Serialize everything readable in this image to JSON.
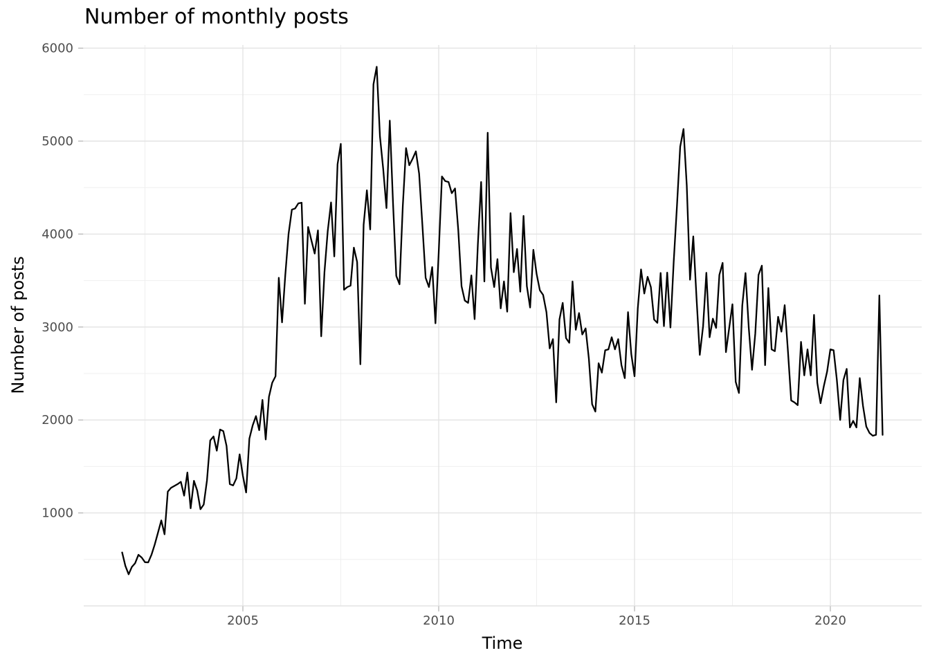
{
  "chart_data": {
    "type": "line",
    "title": "Number of monthly posts",
    "xlabel": "Time",
    "ylabel": "Number of posts",
    "x_start": "2001-12",
    "x_end": "2021-05",
    "x_frequency": "monthly",
    "n_points": 234,
    "values": [
      575,
      430,
      340,
      420,
      460,
      550,
      520,
      470,
      468,
      550,
      660,
      790,
      920,
      770,
      1230,
      1270,
      1290,
      1310,
      1335,
      1186,
      1435,
      1050,
      1345,
      1240,
      1040,
      1090,
      1350,
      1780,
      1823,
      1670,
      1897,
      1880,
      1720,
      1310,
      1296,
      1371,
      1630,
      1400,
      1220,
      1800,
      1940,
      2042,
      1890,
      2216,
      1790,
      2250,
      2400,
      2470,
      3530,
      3050,
      3560,
      4000,
      4263,
      4275,
      4330,
      4337,
      3250,
      4077,
      3930,
      3790,
      4040,
      2900,
      3590,
      4030,
      4340,
      3760,
      4750,
      4970,
      3400,
      3430,
      3445,
      3854,
      3700,
      2600,
      4100,
      4470,
      4050,
      5610,
      5800,
      5050,
      4700,
      4280,
      5220,
      4330,
      3550,
      3460,
      4300,
      4925,
      4740,
      4810,
      4890,
      4650,
      4100,
      3530,
      3430,
      3645,
      3040,
      3800,
      4620,
      4570,
      4560,
      4440,
      4490,
      4040,
      3440,
      3285,
      3260,
      3556,
      3085,
      3890,
      4560,
      3490,
      5090,
      3640,
      3430,
      3730,
      3200,
      3490,
      3165,
      4225,
      3590,
      3840,
      3380,
      4195,
      3440,
      3210,
      3830,
      3570,
      3395,
      3345,
      3160,
      2770,
      2870,
      2190,
      3080,
      3260,
      2880,
      2830,
      3490,
      2970,
      3150,
      2920,
      2985,
      2660,
      2170,
      2090,
      2610,
      2510,
      2750,
      2760,
      2890,
      2760,
      2870,
      2590,
      2450,
      3160,
      2710,
      2470,
      3200,
      3620,
      3360,
      3540,
      3430,
      3080,
      3045,
      3582,
      3010,
      3585,
      2995,
      3700,
      4300,
      4940,
      5130,
      4520,
      3510,
      3975,
      3310,
      2700,
      3010,
      3583,
      2890,
      3090,
      2990,
      3560,
      3690,
      2730,
      2990,
      3245,
      2410,
      2290,
      3230,
      3580,
      2990,
      2540,
      2930,
      3560,
      3660,
      2590,
      3420,
      2760,
      2740,
      3110,
      2950,
      3235,
      2740,
      2210,
      2190,
      2160,
      2840,
      2480,
      2760,
      2480,
      3130,
      2400,
      2180,
      2365,
      2520,
      2760,
      2750,
      2430,
      2000,
      2430,
      2550,
      1920,
      1990,
      1920,
      2450,
      2150,
      1930,
      1860,
      1830,
      1840,
      3340,
      1840
    ],
    "x_axis": {
      "tick_labels": [
        "2005",
        "2010",
        "2015",
        "2020"
      ],
      "tick_years": [
        2005,
        2010,
        2015,
        2020
      ],
      "minor_years": [
        2002.5,
        2007.5,
        2012.5,
        2017.5
      ],
      "grid": true
    },
    "y_axis": {
      "tick_labels": [
        "1000",
        "2000",
        "3000",
        "4000",
        "5000",
        "6000"
      ],
      "tick_values": [
        1000,
        2000,
        3000,
        4000,
        5000,
        6000
      ],
      "minor_values": [
        500,
        1500,
        2500,
        3500,
        4500,
        5500
      ],
      "gridline_values": [
        0,
        1000,
        2000,
        3000,
        4000,
        5000,
        6000
      ],
      "ylim": [
        0,
        6035
      ],
      "grid": true
    },
    "legend": "none",
    "style": {
      "line_color": "#000000",
      "line_width": 2.3,
      "grid_major_color": "#e3e3e3",
      "grid_minor_color": "#efefef",
      "tick_mark_color": "#b0b0b0",
      "tick_label_color": "#4d4d4d",
      "title_color": "#000000",
      "axis_title_color": "#000000",
      "background": "#ffffff"
    }
  }
}
